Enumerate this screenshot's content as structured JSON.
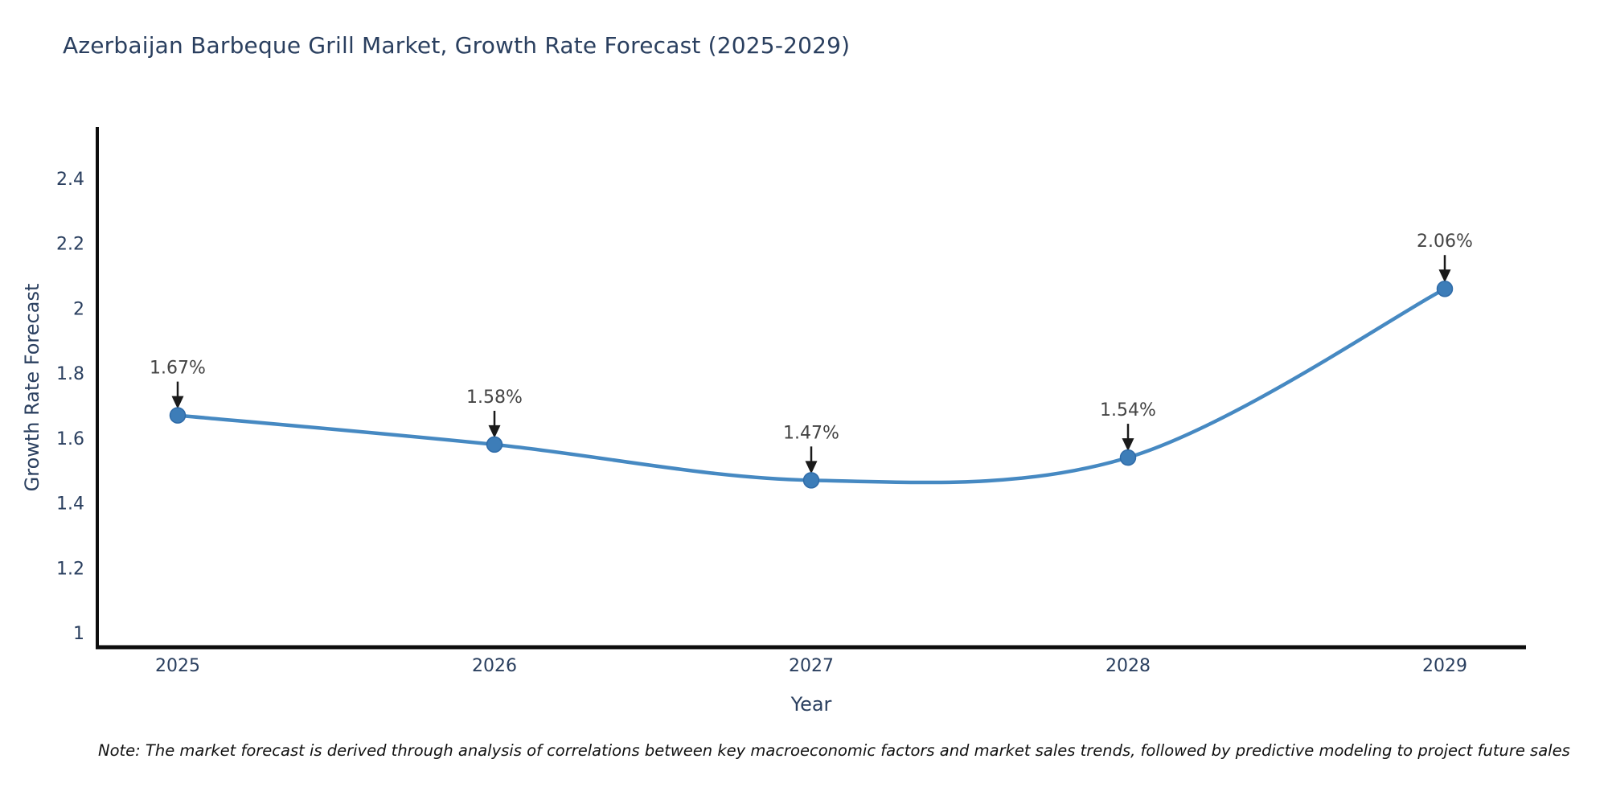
{
  "chart_data": {
    "type": "line",
    "title": "Azerbaijan Barbeque Grill Market, Growth Rate Forecast (2025-2029)",
    "xlabel": "Year",
    "ylabel": "Growth Rate Forecast",
    "categories": [
      2025,
      2026,
      2027,
      2028,
      2029
    ],
    "values": [
      1.67,
      1.58,
      1.47,
      1.54,
      2.06
    ],
    "point_labels": [
      "1.67%",
      "1.58%",
      "1.47%",
      "1.54%",
      "2.06%"
    ],
    "yticks": [
      1,
      1.2,
      1.4,
      1.6,
      1.8,
      2,
      2.2,
      2.4
    ],
    "ytick_labels": [
      "1",
      "1.2",
      "1.4",
      "1.6",
      "1.8",
      "2",
      "2.2",
      "2.4"
    ],
    "xtick_labels": [
      "2025",
      "2026",
      "2027",
      "2028",
      "2029"
    ],
    "ylim": [
      0.955,
      2.553
    ],
    "xlim": [
      2024.74,
      2029.26
    ],
    "grid": false,
    "legend": "none",
    "line_shape": "spline",
    "colors": {
      "line": "#4689c2",
      "marker": "#3d7db8",
      "marker_edge": "#2f6ba8",
      "axis_line": "#0d0d0d",
      "tick_text": "#2a3f5f",
      "title_text": "#2a3f5f",
      "annotation_text": "#444444",
      "arrow": "#1a1a1a"
    },
    "note": "Note: The market forecast is derived through analysis of correlations between key macroeconomic factors and market sales trends, followed by predictive modeling to project future sales"
  }
}
